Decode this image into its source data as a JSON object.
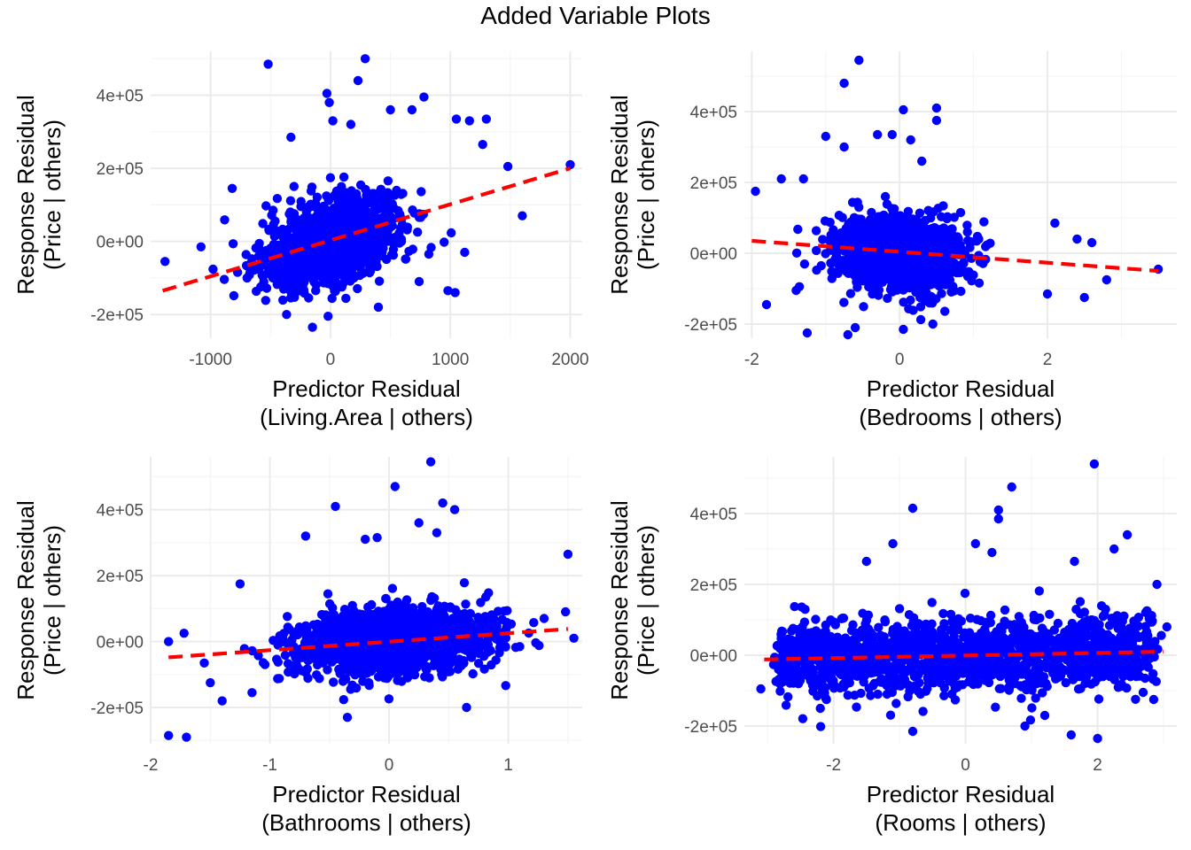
{
  "title": "Added Variable Plots",
  "colors": {
    "points": "#0000ff",
    "fit_line": "#ff0000",
    "grid_major": "#ebebeb",
    "grid_minor": "#f5f5f5"
  },
  "chart_data": [
    {
      "type": "scatter",
      "xlabel": "Predictor Residual\n(Living.Area | others)",
      "ylabel": "Response Residual\n(Price | others)",
      "xticks": [
        -1000,
        0,
        1000,
        2000
      ],
      "xtick_labels": [
        "-1000",
        "0",
        "1000",
        "2000"
      ],
      "yticks": [
        -200000,
        0,
        200000,
        400000
      ],
      "ytick_labels": [
        "-2e+05",
        "0e+00",
        "2e+05",
        "4e+05"
      ],
      "xlim": [
        -1500,
        2100
      ],
      "ylim": [
        -265000,
        520000
      ],
      "fit_line": {
        "x": [
          -1400,
          2000
        ],
        "y": [
          -135000,
          200000
        ],
        "style": "dashed"
      },
      "cloud": {
        "x_center": 0,
        "x_spread": 280,
        "y_center": 0,
        "y_spread": 55000,
        "slope": 98,
        "n": 1400
      },
      "outliers": [
        [
          -520,
          485000
        ],
        [
          290,
          500000
        ],
        [
          230,
          440000
        ],
        [
          -30,
          405000
        ],
        [
          -10,
          380000
        ],
        [
          780,
          395000
        ],
        [
          500,
          360000
        ],
        [
          680,
          360000
        ],
        [
          1050,
          335000
        ],
        [
          1300,
          335000
        ],
        [
          1160,
          330000
        ],
        [
          20,
          330000
        ],
        [
          170,
          320000
        ],
        [
          -330,
          285000
        ],
        [
          1270,
          265000
        ],
        [
          1480,
          205000
        ],
        [
          2000,
          210000
        ],
        [
          1600,
          70000
        ],
        [
          1040,
          -140000
        ],
        [
          -1380,
          -55000
        ],
        [
          -1080,
          -15000
        ],
        [
          -820,
          145000
        ],
        [
          -150,
          -235000
        ],
        [
          -20,
          -205000
        ],
        [
          400,
          -180000
        ],
        [
          740,
          -110000
        ],
        [
          980,
          -135000
        ],
        [
          1120,
          -30000
        ]
      ]
    },
    {
      "type": "scatter",
      "xlabel": "Predictor Residual\n(Bedrooms | others)",
      "ylabel": "Response Residual\n(Price | others)",
      "xticks": [
        -2,
        0,
        2
      ],
      "xtick_labels": [
        "-2",
        "0",
        "2"
      ],
      "yticks": [
        -200000,
        0,
        200000,
        400000
      ],
      "ytick_labels": [
        "-2e+05",
        "0e+00",
        "2e+05",
        "4e+05"
      ],
      "xlim": [
        -2.1,
        3.75
      ],
      "ylim": [
        -240000,
        570000
      ],
      "fit_line": {
        "x": [
          -2.0,
          3.5
        ],
        "y": [
          35000,
          -50000
        ],
        "style": "dashed"
      },
      "cloud": {
        "x_center": 0,
        "x_spread": 0.42,
        "y_center": 0,
        "y_spread": 50000,
        "slope": -15000,
        "n": 1400
      },
      "outliers": [
        [
          -0.55,
          545000
        ],
        [
          -0.75,
          480000
        ],
        [
          0.5,
          410000
        ],
        [
          0.05,
          405000
        ],
        [
          0.5,
          375000
        ],
        [
          -1.0,
          330000
        ],
        [
          -0.3,
          335000
        ],
        [
          -0.1,
          335000
        ],
        [
          0.15,
          320000
        ],
        [
          -0.75,
          300000
        ],
        [
          0.3,
          260000
        ],
        [
          -1.95,
          175000
        ],
        [
          -1.6,
          210000
        ],
        [
          -1.3,
          210000
        ],
        [
          2.1,
          85000
        ],
        [
          2.4,
          40000
        ],
        [
          2.6,
          30000
        ],
        [
          3.5,
          -45000
        ],
        [
          2.0,
          -115000
        ],
        [
          2.5,
          -125000
        ],
        [
          2.8,
          -75000
        ],
        [
          -1.8,
          -145000
        ],
        [
          -1.4,
          -105000
        ],
        [
          -1.25,
          -225000
        ],
        [
          -0.7,
          -230000
        ],
        [
          0.05,
          -215000
        ],
        [
          0.45,
          -200000
        ],
        [
          -0.6,
          -210000
        ]
      ]
    },
    {
      "type": "scatter",
      "xlabel": "Predictor Residual\n(Bathrooms | others)",
      "ylabel": "Response Residual\n(Price | others)",
      "xticks": [
        -2,
        -1,
        0,
        1
      ],
      "xtick_labels": [
        "-2",
        "-1",
        "0",
        "1"
      ],
      "yticks": [
        -200000,
        0,
        200000,
        400000
      ],
      "ytick_labels": [
        "-2e+05",
        "0e+00",
        "2e+05",
        "4e+05"
      ],
      "xlim": [
        -2.0,
        1.62
      ],
      "ylim": [
        -310000,
        560000
      ],
      "fit_line": {
        "x": [
          -1.85,
          1.5
        ],
        "y": [
          -48000,
          38000
        ],
        "style": "dashed"
      },
      "cloud": {
        "x_center": 0.05,
        "x_spread": 0.42,
        "y_center": 0,
        "y_spread": 50000,
        "slope": 25000,
        "n": 1400
      },
      "outliers": [
        [
          0.35,
          545000
        ],
        [
          0.05,
          470000
        ],
        [
          0.45,
          420000
        ],
        [
          -0.45,
          410000
        ],
        [
          0.55,
          400000
        ],
        [
          0.25,
          360000
        ],
        [
          -0.7,
          320000
        ],
        [
          -0.2,
          310000
        ],
        [
          -0.1,
          315000
        ],
        [
          0.4,
          330000
        ],
        [
          1.5,
          265000
        ],
        [
          -1.25,
          175000
        ],
        [
          -1.55,
          -65000
        ],
        [
          -1.5,
          -125000
        ],
        [
          -1.4,
          -180000
        ],
        [
          -1.85,
          -285000
        ],
        [
          -1.7,
          -290000
        ],
        [
          -1.85,
          0
        ],
        [
          -1.72,
          25000
        ],
        [
          -0.35,
          -230000
        ],
        [
          0.65,
          -200000
        ],
        [
          1.55,
          10000
        ],
        [
          1.3,
          70000
        ],
        [
          1.48,
          90000
        ],
        [
          -1.15,
          -155000
        ]
      ]
    },
    {
      "type": "scatter",
      "xlabel": "Predictor Residual\n(Rooms | others)",
      "ylabel": "Response Residual\n(Price | others)",
      "xticks": [
        -2,
        0,
        2
      ],
      "xtick_labels": [
        "-2",
        "0",
        "2"
      ],
      "yticks": [
        -200000,
        0,
        200000,
        400000
      ],
      "ytick_labels": [
        "-2e+05",
        "0e+00",
        "2e+05",
        "4e+05"
      ],
      "xlim": [
        -3.35,
        3.2
      ],
      "ylim": [
        -250000,
        560000
      ],
      "fit_line": {
        "x": [
          -3.05,
          3.0
        ],
        "y": [
          -12000,
          10000
        ],
        "style": "dashed"
      },
      "cloud": {
        "x_center": 0,
        "x_spread": 1.25,
        "y_center": 0,
        "y_spread": 52000,
        "slope": 3500,
        "n": 1500
      },
      "outliers": [
        [
          1.95,
          540000
        ],
        [
          0.7,
          475000
        ],
        [
          -0.8,
          415000
        ],
        [
          0.5,
          410000
        ],
        [
          0.5,
          385000
        ],
        [
          -1.1,
          315000
        ],
        [
          0.15,
          315000
        ],
        [
          2.45,
          340000
        ],
        [
          0.4,
          290000
        ],
        [
          2.25,
          300000
        ],
        [
          1.65,
          265000
        ],
        [
          -1.5,
          265000
        ],
        [
          -3.1,
          -95000
        ],
        [
          2.85,
          -125000
        ],
        [
          -0.8,
          -215000
        ],
        [
          0.9,
          -200000
        ],
        [
          1.6,
          -225000
        ],
        [
          2.0,
          -235000
        ],
        [
          1.2,
          -170000
        ],
        [
          -2.2,
          -150000
        ],
        [
          2.9,
          200000
        ],
        [
          3.05,
          80000
        ]
      ]
    }
  ]
}
